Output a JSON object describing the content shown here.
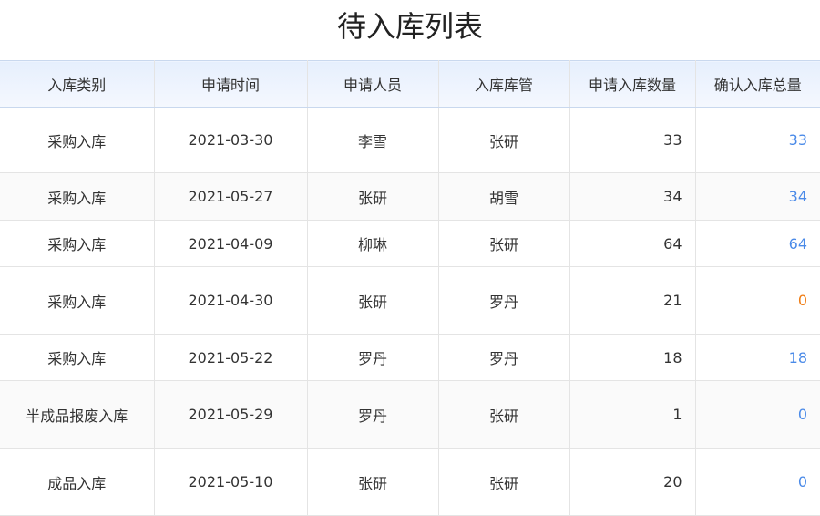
{
  "title": "待入库列表",
  "columns": [
    "入库类别",
    "申请时间",
    "申请人员",
    "入库库管",
    "申请入库数量",
    "确认入库总量"
  ],
  "colors": {
    "confirmed": "#4a8ae8",
    "zero_warning": "#f07c13"
  },
  "rows": [
    {
      "type": "采购入库",
      "date": "2021-03-30",
      "applicant": "李雪",
      "keeper": "张研",
      "requested": "33",
      "confirmed": "33",
      "status": "blue"
    },
    {
      "type": "采购入库",
      "date": "2021-05-27",
      "applicant": "张研",
      "keeper": "胡雪",
      "requested": "34",
      "confirmed": "34",
      "status": "blue"
    },
    {
      "type": "采购入库",
      "date": "2021-04-09",
      "applicant": "柳琳",
      "keeper": "张研",
      "requested": "64",
      "confirmed": "64",
      "status": "blue"
    },
    {
      "type": "采购入库",
      "date": "2021-04-30",
      "applicant": "张研",
      "keeper": "罗丹",
      "requested": "21",
      "confirmed": "0",
      "status": "orange"
    },
    {
      "type": "采购入库",
      "date": "2021-05-22",
      "applicant": "罗丹",
      "keeper": "罗丹",
      "requested": "18",
      "confirmed": "18",
      "status": "blue"
    },
    {
      "type": "半成品报废入库",
      "date": "2021-05-29",
      "applicant": "罗丹",
      "keeper": "张研",
      "requested": "1",
      "confirmed": "0",
      "status": "blue"
    },
    {
      "type": "成品入库",
      "date": "2021-05-10",
      "applicant": "张研",
      "keeper": "张研",
      "requested": "20",
      "confirmed": "0",
      "status": "blue"
    }
  ]
}
